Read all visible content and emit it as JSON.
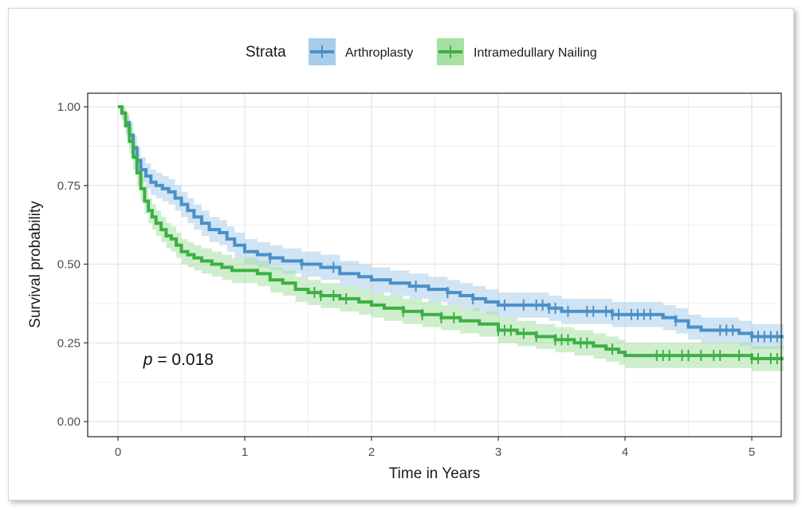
{
  "chart_data": {
    "type": "line",
    "subtype": "kaplan-meier",
    "title": "",
    "xlabel": "Time in Years",
    "ylabel": "Survival probability",
    "xlim": [
      0,
      5.25
    ],
    "ylim": [
      0,
      1.0
    ],
    "x_ticks": [
      0,
      1,
      2,
      3,
      4,
      5
    ],
    "x_tick_labels": [
      "0",
      "1",
      "2",
      "3",
      "4",
      "5"
    ],
    "y_ticks": [
      0,
      0.25,
      0.5,
      0.75,
      1.0
    ],
    "y_tick_labels": [
      "0.00",
      "0.25",
      "0.50",
      "0.75",
      "1.00"
    ],
    "grid": true,
    "legend": {
      "title": "Strata",
      "position": "top"
    },
    "annotation": {
      "p_symbol": "p",
      "p_text": " = 0.018",
      "x": 0.2,
      "y": 0.18
    },
    "series": [
      {
        "name": "Arthroplasty",
        "color": "#4a90c8",
        "band_color": "#a9cde9",
        "x": [
          0,
          0.03,
          0.06,
          0.09,
          0.12,
          0.15,
          0.18,
          0.22,
          0.26,
          0.3,
          0.35,
          0.4,
          0.45,
          0.5,
          0.55,
          0.6,
          0.66,
          0.72,
          0.8,
          0.86,
          0.92,
          1.0,
          1.1,
          1.2,
          1.3,
          1.45,
          1.6,
          1.75,
          1.9,
          2.0,
          2.15,
          2.3,
          2.45,
          2.6,
          2.7,
          2.8,
          2.9,
          3.0,
          3.2,
          3.4,
          3.5,
          3.7,
          3.9,
          4.1,
          4.3,
          4.4,
          4.5,
          4.6,
          4.75,
          4.9,
          5.0,
          5.25
        ],
        "y": [
          1.0,
          0.98,
          0.95,
          0.91,
          0.87,
          0.83,
          0.8,
          0.78,
          0.76,
          0.75,
          0.74,
          0.73,
          0.71,
          0.69,
          0.67,
          0.65,
          0.63,
          0.61,
          0.6,
          0.58,
          0.56,
          0.54,
          0.53,
          0.52,
          0.51,
          0.5,
          0.49,
          0.47,
          0.46,
          0.45,
          0.44,
          0.43,
          0.42,
          0.41,
          0.4,
          0.39,
          0.38,
          0.37,
          0.37,
          0.36,
          0.35,
          0.35,
          0.34,
          0.34,
          0.33,
          0.32,
          0.3,
          0.29,
          0.29,
          0.28,
          0.27,
          0.27
        ],
        "lower": [
          1.0,
          0.96,
          0.92,
          0.87,
          0.83,
          0.79,
          0.76,
          0.74,
          0.72,
          0.71,
          0.7,
          0.69,
          0.67,
          0.65,
          0.63,
          0.61,
          0.59,
          0.57,
          0.56,
          0.54,
          0.52,
          0.5,
          0.49,
          0.48,
          0.47,
          0.46,
          0.45,
          0.43,
          0.42,
          0.41,
          0.4,
          0.39,
          0.38,
          0.37,
          0.36,
          0.35,
          0.34,
          0.33,
          0.33,
          0.32,
          0.31,
          0.31,
          0.3,
          0.3,
          0.29,
          0.28,
          0.26,
          0.25,
          0.25,
          0.24,
          0.23,
          0.23
        ],
        "upper": [
          1.0,
          1.0,
          0.98,
          0.95,
          0.91,
          0.87,
          0.84,
          0.82,
          0.8,
          0.79,
          0.78,
          0.77,
          0.75,
          0.73,
          0.71,
          0.69,
          0.67,
          0.65,
          0.64,
          0.62,
          0.6,
          0.58,
          0.57,
          0.56,
          0.55,
          0.54,
          0.53,
          0.51,
          0.5,
          0.49,
          0.48,
          0.47,
          0.46,
          0.45,
          0.44,
          0.43,
          0.42,
          0.41,
          0.41,
          0.4,
          0.39,
          0.39,
          0.38,
          0.38,
          0.37,
          0.36,
          0.34,
          0.33,
          0.33,
          0.32,
          0.31,
          0.31
        ],
        "censor_x": [
          1.2,
          1.45,
          1.7,
          2.35,
          2.6,
          2.8,
          3.05,
          3.2,
          3.3,
          3.35,
          3.4,
          3.45,
          3.55,
          3.7,
          3.75,
          3.85,
          3.9,
          3.95,
          4.05,
          4.1,
          4.15,
          4.2,
          4.4,
          4.75,
          4.8,
          4.85,
          5.0,
          5.05,
          5.1,
          5.15,
          5.2
        ]
      },
      {
        "name": "Intramedullary Nailing",
        "color": "#3cb043",
        "band_color": "#a8e0a4",
        "x": [
          0,
          0.03,
          0.06,
          0.09,
          0.12,
          0.15,
          0.18,
          0.21,
          0.24,
          0.27,
          0.3,
          0.34,
          0.38,
          0.42,
          0.46,
          0.5,
          0.55,
          0.6,
          0.66,
          0.74,
          0.82,
          0.9,
          1.0,
          1.1,
          1.2,
          1.3,
          1.4,
          1.5,
          1.6,
          1.75,
          1.9,
          2.0,
          2.1,
          2.25,
          2.4,
          2.55,
          2.7,
          2.85,
          3.0,
          3.15,
          3.3,
          3.45,
          3.6,
          3.75,
          3.85,
          3.95,
          4.0,
          4.3,
          4.5,
          4.8,
          5.0,
          5.25
        ],
        "y": [
          1.0,
          0.98,
          0.94,
          0.89,
          0.84,
          0.79,
          0.74,
          0.7,
          0.67,
          0.65,
          0.63,
          0.61,
          0.59,
          0.58,
          0.56,
          0.54,
          0.53,
          0.52,
          0.51,
          0.5,
          0.49,
          0.48,
          0.48,
          0.47,
          0.45,
          0.44,
          0.42,
          0.41,
          0.4,
          0.39,
          0.38,
          0.37,
          0.36,
          0.35,
          0.34,
          0.33,
          0.32,
          0.31,
          0.29,
          0.28,
          0.27,
          0.26,
          0.25,
          0.24,
          0.23,
          0.22,
          0.21,
          0.21,
          0.21,
          0.21,
          0.2,
          0.2
        ],
        "lower": [
          1.0,
          0.96,
          0.91,
          0.85,
          0.8,
          0.75,
          0.7,
          0.66,
          0.63,
          0.61,
          0.59,
          0.57,
          0.55,
          0.54,
          0.52,
          0.5,
          0.49,
          0.48,
          0.47,
          0.46,
          0.45,
          0.44,
          0.44,
          0.43,
          0.41,
          0.4,
          0.38,
          0.37,
          0.36,
          0.35,
          0.34,
          0.33,
          0.32,
          0.31,
          0.3,
          0.29,
          0.28,
          0.27,
          0.25,
          0.24,
          0.23,
          0.22,
          0.21,
          0.2,
          0.19,
          0.18,
          0.17,
          0.17,
          0.17,
          0.17,
          0.16,
          0.16
        ],
        "upper": [
          1.0,
          1.0,
          0.97,
          0.93,
          0.88,
          0.83,
          0.78,
          0.74,
          0.71,
          0.69,
          0.67,
          0.65,
          0.63,
          0.62,
          0.6,
          0.58,
          0.57,
          0.56,
          0.55,
          0.54,
          0.53,
          0.52,
          0.52,
          0.51,
          0.49,
          0.48,
          0.46,
          0.45,
          0.44,
          0.43,
          0.42,
          0.41,
          0.4,
          0.39,
          0.38,
          0.37,
          0.36,
          0.35,
          0.33,
          0.32,
          0.31,
          0.3,
          0.29,
          0.28,
          0.27,
          0.26,
          0.25,
          0.25,
          0.25,
          0.25,
          0.24,
          0.24
        ],
        "censor_x": [
          1.55,
          1.6,
          1.7,
          1.8,
          2.25,
          2.4,
          2.55,
          2.65,
          3.0,
          3.05,
          3.1,
          3.2,
          3.3,
          3.45,
          3.5,
          3.55,
          3.65,
          3.7,
          3.9,
          4.25,
          4.3,
          4.35,
          4.45,
          4.5,
          4.6,
          4.7,
          4.75,
          4.9,
          5.0,
          5.05,
          5.15,
          5.2
        ]
      }
    ]
  }
}
